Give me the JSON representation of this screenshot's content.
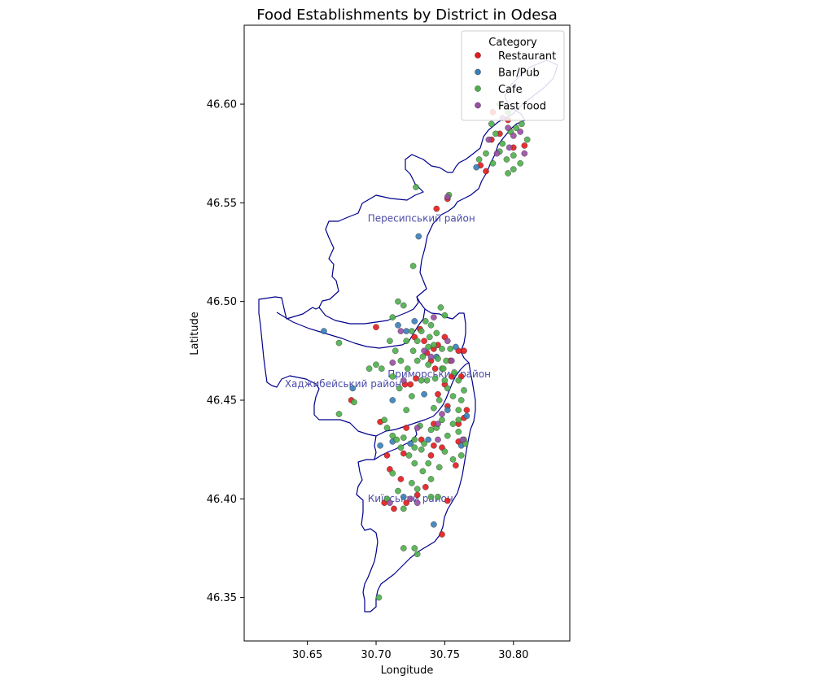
{
  "chart_data": {
    "type": "scatter",
    "title": "Food Establishments by District in Odesa",
    "xlabel": "Longitude",
    "ylabel": "Latitude",
    "xlim": [
      30.604,
      30.841
    ],
    "ylim": [
      46.328,
      46.64
    ],
    "xticks": [
      30.65,
      30.7,
      30.75,
      30.8
    ],
    "xtick_labels": [
      "30.65",
      "30.70",
      "30.75",
      "30.80"
    ],
    "yticks": [
      46.35,
      46.4,
      46.45,
      46.5,
      46.55,
      46.6
    ],
    "ytick_labels": [
      "46.35",
      "46.40",
      "46.45",
      "46.50",
      "46.55",
      "46.60"
    ],
    "grid": false,
    "legend": {
      "title": "Category",
      "placement": "top-right",
      "entries": [
        "Restaurant",
        "Bar/Pub",
        "Cafe",
        "Fast food"
      ]
    },
    "district_labels": [
      {
        "text": "Пересипський район",
        "lon": 30.733,
        "lat": 46.5405
      },
      {
        "text": "Приморський район",
        "lon": 30.746,
        "lat": 46.4615
      },
      {
        "text": "Хаджибейський район",
        "lon": 30.676,
        "lat": 46.4565
      },
      {
        "text": "Київський район",
        "lon": 30.725,
        "lat": 46.3985
      }
    ],
    "series": [
      {
        "name": "Restaurant",
        "color": "#e41a1c",
        "points": [
          [
            30.7,
            46.487
          ],
          [
            30.682,
            46.45
          ],
          [
            30.703,
            46.439
          ],
          [
            30.722,
            46.436
          ],
          [
            30.733,
            46.43
          ],
          [
            30.742,
            46.438
          ],
          [
            30.76,
            46.438
          ],
          [
            30.766,
            46.445
          ],
          [
            30.764,
            46.475
          ],
          [
            30.76,
            46.475
          ],
          [
            30.754,
            46.47
          ],
          [
            30.75,
            46.458
          ],
          [
            30.745,
            46.453
          ],
          [
            30.74,
            46.47
          ],
          [
            30.735,
            46.48
          ],
          [
            30.728,
            46.482
          ],
          [
            30.737,
            46.474
          ],
          [
            30.745,
            46.478
          ],
          [
            30.75,
            46.482
          ],
          [
            30.732,
            46.486
          ],
          [
            30.755,
            46.462
          ],
          [
            30.762,
            46.462
          ],
          [
            30.76,
            46.429
          ],
          [
            30.748,
            46.426
          ],
          [
            30.74,
            46.422
          ],
          [
            30.72,
            46.423
          ],
          [
            30.708,
            46.422
          ],
          [
            30.71,
            46.415
          ],
          [
            30.718,
            46.41
          ],
          [
            30.736,
            46.406
          ],
          [
            30.752,
            46.399
          ],
          [
            30.73,
            46.402
          ],
          [
            30.722,
            46.398
          ],
          [
            30.713,
            46.395
          ],
          [
            30.706,
            46.398
          ],
          [
            30.748,
            46.382
          ],
          [
            30.744,
            46.547
          ],
          [
            30.752,
            46.552
          ],
          [
            30.776,
            46.569
          ],
          [
            30.78,
            46.566
          ],
          [
            30.784,
            46.582
          ],
          [
            30.79,
            46.585
          ],
          [
            30.796,
            46.592
          ],
          [
            30.8,
            46.578
          ],
          [
            30.808,
            46.579
          ],
          [
            30.785,
            46.596
          ],
          [
            30.742,
            46.427
          ],
          [
            30.764,
            46.441
          ],
          [
            30.758,
            46.417
          ],
          [
            30.752,
            46.447
          ],
          [
            30.743,
            46.466
          ],
          [
            30.729,
            46.461
          ],
          [
            30.725,
            46.458
          ],
          [
            30.721,
            46.458
          ],
          [
            30.742,
            46.476
          ]
        ]
      },
      {
        "name": "Bar/Pub",
        "color": "#377eb8",
        "points": [
          [
            30.662,
            46.485
          ],
          [
            30.683,
            46.456
          ],
          [
            30.712,
            46.45
          ],
          [
            30.731,
            46.533
          ],
          [
            30.735,
            46.453
          ],
          [
            30.766,
            46.442
          ],
          [
            30.742,
            46.387
          ],
          [
            30.72,
            46.401
          ],
          [
            30.703,
            46.427
          ],
          [
            30.725,
            46.428
          ],
          [
            30.716,
            46.488
          ],
          [
            30.722,
            46.485
          ],
          [
            30.728,
            46.49
          ],
          [
            30.762,
            46.427
          ],
          [
            30.752,
            46.445
          ],
          [
            30.773,
            46.568
          ],
          [
            30.758,
            46.477
          ],
          [
            30.738,
            46.43
          ],
          [
            30.712,
            46.429
          ],
          [
            30.744,
            46.472
          ]
        ]
      },
      {
        "name": "Cafe",
        "color": "#4daf4a",
        "points": [
          [
            30.673,
            46.479
          ],
          [
            30.673,
            46.443
          ],
          [
            30.684,
            46.449
          ],
          [
            30.695,
            46.466
          ],
          [
            30.706,
            46.44
          ],
          [
            30.702,
            46.35
          ],
          [
            30.708,
            46.4
          ],
          [
            30.716,
            46.5
          ],
          [
            30.72,
            46.498
          ],
          [
            30.727,
            46.518
          ],
          [
            30.729,
            46.558
          ],
          [
            30.712,
            46.492
          ],
          [
            30.71,
            46.48
          ],
          [
            30.714,
            46.475
          ],
          [
            30.718,
            46.47
          ],
          [
            30.723,
            46.466
          ],
          [
            30.727,
            46.475
          ],
          [
            30.73,
            46.48
          ],
          [
            30.733,
            46.485
          ],
          [
            30.736,
            46.49
          ],
          [
            30.739,
            46.482
          ],
          [
            30.742,
            46.478
          ],
          [
            30.745,
            46.471
          ],
          [
            30.748,
            46.466
          ],
          [
            30.751,
            46.47
          ],
          [
            30.754,
            46.476
          ],
          [
            30.757,
            46.464
          ],
          [
            30.76,
            46.46
          ],
          [
            30.738,
            46.468
          ],
          [
            30.734,
            46.472
          ],
          [
            30.73,
            46.47
          ],
          [
            30.726,
            46.485
          ],
          [
            30.722,
            46.48
          ],
          [
            30.74,
            46.488
          ],
          [
            30.744,
            46.484
          ],
          [
            30.748,
            46.476
          ],
          [
            30.752,
            46.456
          ],
          [
            30.746,
            46.45
          ],
          [
            30.742,
            46.446
          ],
          [
            30.748,
            46.44
          ],
          [
            30.744,
            46.436
          ],
          [
            30.752,
            46.432
          ],
          [
            30.756,
            46.438
          ],
          [
            30.76,
            46.434
          ],
          [
            30.764,
            46.43
          ],
          [
            30.762,
            46.422
          ],
          [
            30.756,
            46.42
          ],
          [
            30.75,
            46.424
          ],
          [
            30.746,
            46.416
          ],
          [
            30.74,
            46.41
          ],
          [
            30.734,
            46.414
          ],
          [
            30.728,
            46.418
          ],
          [
            30.724,
            46.422
          ],
          [
            30.718,
            46.426
          ],
          [
            30.712,
            46.432
          ],
          [
            30.708,
            46.436
          ],
          [
            30.715,
            46.43
          ],
          [
            30.72,
            46.431
          ],
          [
            30.728,
            46.426
          ],
          [
            30.732,
            46.437
          ],
          [
            30.73,
            46.405
          ],
          [
            30.726,
            46.408
          ],
          [
            30.716,
            46.404
          ],
          [
            30.712,
            46.413
          ],
          [
            30.72,
            46.395
          ],
          [
            30.74,
            46.401
          ],
          [
            30.745,
            46.401
          ],
          [
            30.728,
            46.375
          ],
          [
            30.72,
            46.375
          ],
          [
            30.73,
            46.372
          ],
          [
            30.76,
            46.445
          ],
          [
            30.762,
            46.45
          ],
          [
            30.764,
            46.455
          ],
          [
            30.756,
            46.452
          ],
          [
            30.75,
            46.46
          ],
          [
            30.737,
            46.46
          ],
          [
            30.733,
            46.46
          ],
          [
            30.75,
            46.493
          ],
          [
            30.747,
            46.497
          ],
          [
            30.704,
            46.466
          ],
          [
            30.7,
            46.468
          ],
          [
            30.712,
            46.462
          ],
          [
            30.717,
            46.456
          ],
          [
            30.722,
            46.445
          ],
          [
            30.726,
            46.452
          ],
          [
            30.78,
            46.575
          ],
          [
            30.785,
            46.57
          ],
          [
            30.79,
            46.576
          ],
          [
            30.795,
            46.572
          ],
          [
            30.8,
            46.574
          ],
          [
            30.792,
            46.58
          ],
          [
            30.787,
            46.585
          ],
          [
            30.798,
            46.586
          ],
          [
            30.802,
            46.588
          ],
          [
            30.796,
            46.596
          ],
          [
            30.806,
            46.59
          ],
          [
            30.81,
            46.582
          ],
          [
            30.79,
            46.6
          ],
          [
            30.784,
            46.59
          ],
          [
            30.775,
            46.572
          ],
          [
            30.8,
            46.567
          ],
          [
            30.796,
            46.565
          ],
          [
            30.805,
            46.57
          ],
          [
            30.753,
            46.554
          ],
          [
            30.765,
            46.428
          ],
          [
            30.733,
            46.425
          ],
          [
            30.738,
            46.418
          ],
          [
            30.74,
            46.435
          ],
          [
            30.735,
            46.428
          ],
          [
            30.743,
            46.461
          ],
          [
            30.728,
            46.43
          ],
          [
            30.76,
            46.44
          ],
          [
            30.749,
            46.466
          ],
          [
            30.738,
            46.477
          ]
        ]
      },
      {
        "name": "Fast food",
        "color": "#984ea3",
        "points": [
          [
            30.712,
            46.469
          ],
          [
            30.718,
            46.485
          ],
          [
            30.745,
            46.438
          ],
          [
            30.74,
            46.472
          ],
          [
            30.755,
            46.47
          ],
          [
            30.742,
            46.492
          ],
          [
            30.725,
            46.4
          ],
          [
            30.71,
            46.398
          ],
          [
            30.73,
            46.398
          ],
          [
            30.735,
            46.475
          ],
          [
            30.752,
            46.48
          ],
          [
            30.72,
            46.46
          ],
          [
            30.796,
            46.588
          ],
          [
            30.8,
            46.584
          ],
          [
            30.805,
            46.586
          ],
          [
            30.792,
            46.593
          ],
          [
            30.788,
            46.575
          ],
          [
            30.782,
            46.582
          ],
          [
            30.797,
            46.578
          ],
          [
            30.808,
            46.575
          ],
          [
            30.763,
            46.43
          ],
          [
            30.745,
            46.43
          ],
          [
            30.748,
            46.443
          ],
          [
            30.73,
            46.436
          ],
          [
            30.752,
            46.553
          ]
        ]
      }
    ]
  }
}
